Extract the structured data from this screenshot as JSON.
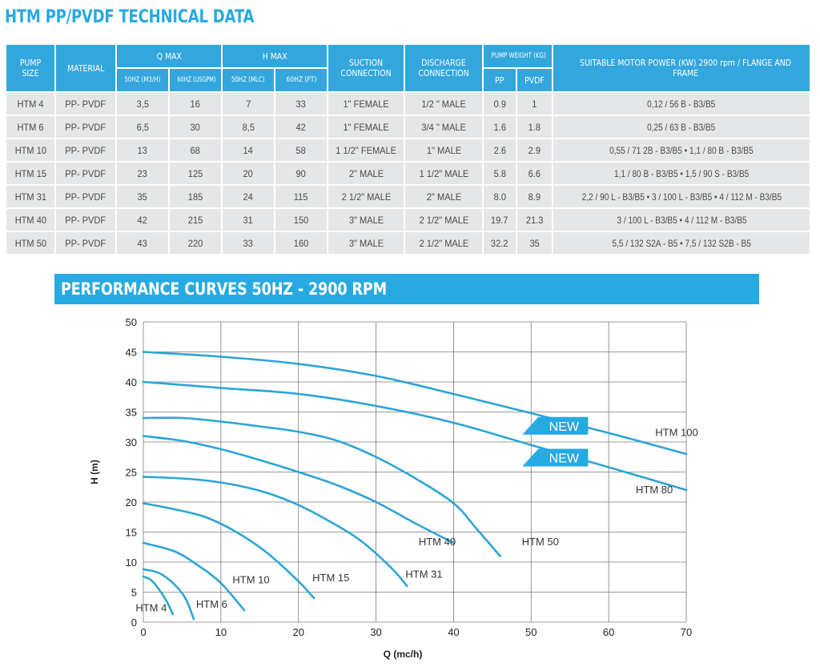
{
  "page_title": "HTM PP/PVDF TECHNICAL DATA",
  "table": {
    "headers": {
      "pump_size": "PUMP SIZE",
      "material": "MATERIAL",
      "q_max": "Q MAX",
      "h_max": "H MAX",
      "suction": "SUCTION CONNECTION",
      "discharge": "DISCHARGE CONNECTION",
      "pump_weight": "PUMP WEIGHT (KG)",
      "motor": "SUITABLE MOTOR POWER (KW) 2900 rpm / FLANGE AND FRAME",
      "q_50hz": "50HZ (M3/H)",
      "q_60hz": "60HZ (USGPM)",
      "h_50hz": "50HZ (MLC)",
      "h_60hz": "60HZ (FT)",
      "pp": "PP",
      "pvdf": "PVDF"
    },
    "rows": [
      {
        "size": "HTM 4",
        "material": "PP- PVDF",
        "q50": "3,5",
        "q60": "16",
        "h50": "7",
        "h60": "33",
        "suction": "1\" FEMALE",
        "discharge": "1/2 \" MALE",
        "pp": "0.9",
        "pvdf": "1",
        "motor": "0,12 / 56 B - B3/B5"
      },
      {
        "size": "HTM 6",
        "material": "PP- PVDF",
        "q50": "6,5",
        "q60": "30",
        "h50": "8,5",
        "h60": "42",
        "suction": "1\" FEMALE",
        "discharge": "3/4 \" MALE",
        "pp": "1.6",
        "pvdf": "1.8",
        "motor": "0,25 / 63 B - B3/B5"
      },
      {
        "size": "HTM 10",
        "material": "PP- PVDF",
        "q50": "13",
        "q60": "68",
        "h50": "14",
        "h60": "58",
        "suction": "1 1/2\" FEMALE",
        "discharge": "1\" MALE",
        "pp": "2.6",
        "pvdf": "2.9",
        "motor": "0,55 / 71 2B - B3/B5 • 1,1 / 80 B - B3/B5"
      },
      {
        "size": "HTM 15",
        "material": "PP- PVDF",
        "q50": "23",
        "q60": "125",
        "h50": "20",
        "h60": "90",
        "suction": "2\" MALE",
        "discharge": "1 1/2\" MALE",
        "pp": "5.8",
        "pvdf": "6.6",
        "motor": "1,1 / 80 B - B3/B5 • 1,5 / 90 S - B3/B5"
      },
      {
        "size": "HTM 31",
        "material": "PP- PVDF",
        "q50": "35",
        "q60": "185",
        "h50": "24",
        "h60": "115",
        "suction": "2 1/2\" MALE",
        "discharge": "2\" MALE",
        "pp": "8.0",
        "pvdf": "8.9",
        "motor": "2,2 / 90 L - B3/B5 • 3 / 100 L - B3/B5 • 4 / 112 M - B3/B5"
      },
      {
        "size": "HTM 40",
        "material": "PP- PVDF",
        "q50": "42",
        "q60": "215",
        "h50": "31",
        "h60": "150",
        "suction": "3\" MALE",
        "discharge": "2 1/2\" MALE",
        "pp": "19.7",
        "pvdf": "21.3",
        "motor": "3 / 100 L - B3/B5 • 4 / 112 M - B3/B5"
      },
      {
        "size": "HTM 50",
        "material": "PP- PVDF",
        "q50": "43",
        "q60": "220",
        "h50": "33",
        "h60": "160",
        "suction": "3\" MALE",
        "discharge": "2 1/2\" MALE",
        "pp": "32.2",
        "pvdf": "35",
        "motor": "5,5 / 132 S2A - B5 • 7,5 / 132 S2B - B5"
      }
    ]
  },
  "chart_banner": "PERFORMANCE CURVES 50HZ - 2900 RPM",
  "colors": {
    "accent": "#27a9e1",
    "header_bg": "#33a7dd",
    "cell_bg": "#e5e6e7",
    "curve": "#2ba5d6"
  },
  "chart_data": {
    "type": "line",
    "title": "PERFORMANCE CURVES 50HZ - 2900 RPM",
    "xlabel": "Q (mc/h)",
    "ylabel": "H (m)",
    "xlim": [
      0,
      70
    ],
    "ylim": [
      0,
      50
    ],
    "xticks": [
      0,
      10,
      20,
      30,
      40,
      50,
      60,
      70
    ],
    "yticks": [
      0,
      5,
      10,
      15,
      20,
      25,
      30,
      35,
      40,
      45,
      50
    ],
    "grid": true,
    "series": [
      {
        "name": "HTM 4",
        "label": "HTM 4",
        "label_at": [
          -1,
          1.8
        ],
        "x": [
          0,
          1,
          2,
          3,
          3.8
        ],
        "y": [
          7.6,
          7,
          5.5,
          3.5,
          1.3
        ]
      },
      {
        "name": "HTM 6",
        "label": "HTM 6",
        "label_at": [
          6.8,
          2.4
        ],
        "x": [
          0,
          2,
          4,
          5.5,
          6.5
        ],
        "y": [
          8.8,
          8.2,
          6.3,
          3.8,
          0.5
        ]
      },
      {
        "name": "HTM 10",
        "label": "HTM 10",
        "label_at": [
          11.5,
          6.5
        ],
        "x": [
          0,
          4,
          7,
          10,
          13
        ],
        "y": [
          13.2,
          11.8,
          9.5,
          6.5,
          2
        ]
      },
      {
        "name": "HTM 15",
        "label": "HTM 15",
        "label_at": [
          21.8,
          6.8
        ],
        "x": [
          0,
          4,
          8,
          12,
          16,
          20,
          22
        ],
        "y": [
          19.8,
          18.8,
          17.5,
          15,
          11.5,
          6.8,
          4
        ]
      },
      {
        "name": "HTM 31",
        "label": "HTM 31",
        "label_at": [
          33.8,
          7.4
        ],
        "x": [
          0,
          4,
          8,
          12,
          16,
          20,
          24,
          28,
          32,
          34
        ],
        "y": [
          24.2,
          24,
          23.6,
          22.8,
          21.5,
          19.5,
          16.8,
          13.6,
          9,
          6
        ]
      },
      {
        "name": "HTM 40",
        "label": "HTM 40",
        "label_at": [
          35.5,
          12.8
        ],
        "x": [
          0,
          5,
          10,
          15,
          20,
          25,
          30,
          35,
          40
        ],
        "y": [
          31,
          30.2,
          28.8,
          27,
          25,
          22.8,
          20,
          16.5,
          13.2
        ]
      },
      {
        "name": "HTM 50",
        "label": "HTM 50",
        "label_at": [
          48.8,
          12.8
        ],
        "x": [
          0,
          5,
          10,
          15,
          20,
          25,
          30,
          35,
          40,
          43,
          46
        ],
        "y": [
          34,
          34,
          33.4,
          32.6,
          31.7,
          30.2,
          27.5,
          24,
          19.8,
          15.5,
          11
        ]
      },
      {
        "name": "HTM 80",
        "label": "HTM 80",
        "label_at": [
          63.5,
          21.5
        ],
        "x": [
          0,
          10,
          20,
          30,
          40,
          50,
          60,
          70
        ],
        "y": [
          40,
          39,
          38,
          36,
          33.2,
          29.5,
          25.8,
          22
        ]
      },
      {
        "name": "HTM 100",
        "label": "HTM 100",
        "label_at": [
          66,
          31
        ],
        "x": [
          0,
          10,
          20,
          30,
          40,
          50,
          60,
          70
        ],
        "y": [
          45,
          44.2,
          43,
          41,
          38,
          34.8,
          31.5,
          28
        ]
      }
    ],
    "annotations": [
      {
        "text": "NEW",
        "series": "HTM 100",
        "at": [
          53,
          32.7
        ]
      },
      {
        "text": "NEW",
        "series": "HTM 80",
        "at": [
          53,
          27.4
        ]
      }
    ]
  }
}
